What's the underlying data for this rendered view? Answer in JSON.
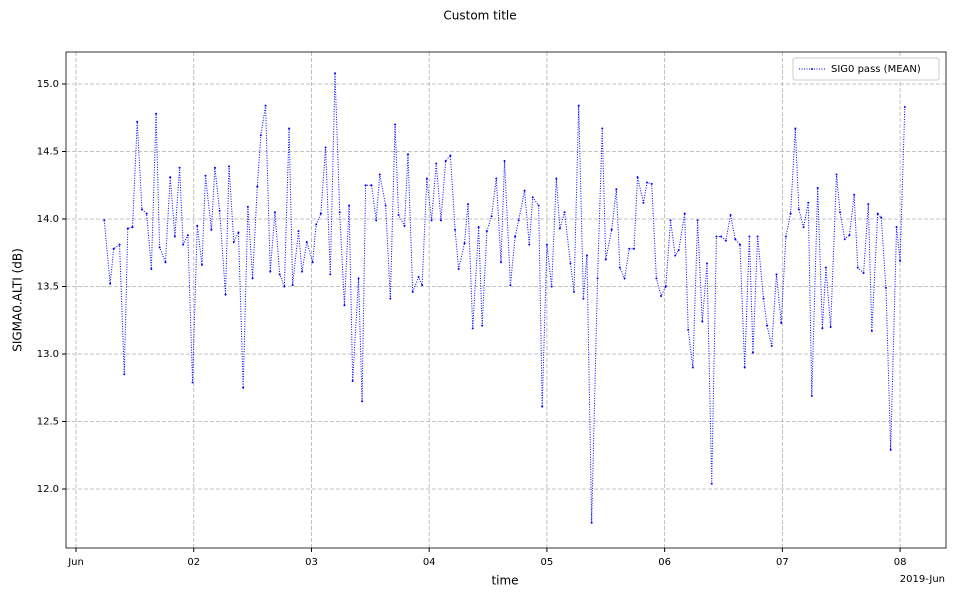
{
  "chart_data": {
    "type": "line",
    "title": "Custom title",
    "xlabel": "time",
    "ylabel": "SIGMA0.ALTI (dB)",
    "x_offset_label": "2019-Jun",
    "xlim": [
      -0.085,
      7.39
    ],
    "ylim": [
      11.563,
      15.237
    ],
    "xticks": [
      {
        "value": 0,
        "label": "Jun"
      },
      {
        "value": 1,
        "label": "02"
      },
      {
        "value": 2,
        "label": "03"
      },
      {
        "value": 3,
        "label": "04"
      },
      {
        "value": 4,
        "label": "05"
      },
      {
        "value": 5,
        "label": "06"
      },
      {
        "value": 6,
        "label": "07"
      },
      {
        "value": 7,
        "label": "08"
      }
    ],
    "yticks": [
      {
        "value": 12,
        "label": "12.0"
      },
      12.5,
      {
        "value": 13,
        "label": "13.0"
      },
      13.5,
      {
        "value": 14,
        "label": "14.0"
      },
      14.5,
      {
        "value": 15,
        "label": "15.0"
      }
    ],
    "grid": true,
    "legend": "upper right",
    "x": [
      0.24,
      0.29,
      0.32,
      0.37,
      0.41,
      0.44,
      0.48,
      0.52,
      0.56,
      0.6,
      0.64,
      0.68,
      0.71,
      0.76,
      0.8,
      0.84,
      0.88,
      0.91,
      0.95,
      0.99,
      1.03,
      1.07,
      1.1,
      1.15,
      1.18,
      1.22,
      1.27,
      1.3,
      1.34,
      1.38,
      1.42,
      1.46,
      1.5,
      1.54,
      1.57,
      1.61,
      1.65,
      1.69,
      1.73,
      1.77,
      1.81,
      1.84,
      1.89,
      1.92,
      1.96,
      2.01,
      2.04,
      2.08,
      2.12,
      2.16,
      2.2,
      2.24,
      2.28,
      2.32,
      2.35,
      2.4,
      2.43,
      2.46,
      2.51,
      2.55,
      2.58,
      2.63,
      2.67,
      2.71,
      2.74,
      2.79,
      2.82,
      2.86,
      2.91,
      2.94,
      2.98,
      3.02,
      3.06,
      3.1,
      3.14,
      3.18,
      3.22,
      3.25,
      3.3,
      3.33,
      3.37,
      3.42,
      3.45,
      3.49,
      3.53,
      3.57,
      3.61,
      3.64,
      3.69,
      3.73,
      3.76,
      3.81,
      3.85,
      3.88,
      3.93,
      3.96,
      4.0,
      4.04,
      4.08,
      4.11,
      4.15,
      4.2,
      4.23,
      4.27,
      4.31,
      4.34,
      4.38,
      4.43,
      4.47,
      4.5,
      4.55,
      4.59,
      4.62,
      4.66,
      4.7,
      4.74,
      4.77,
      4.82,
      4.85,
      4.89,
      4.93,
      4.97,
      5.01,
      5.05,
      5.09,
      5.12,
      5.17,
      5.2,
      5.24,
      5.28,
      5.32,
      5.36,
      5.4,
      5.44,
      5.48,
      5.52,
      5.56,
      5.6,
      5.64,
      5.68,
      5.72,
      5.75,
      5.79,
      5.84,
      5.87,
      5.91,
      5.95,
      5.99,
      6.03,
      6.07,
      6.11,
      6.14,
      6.18,
      6.22,
      6.25,
      6.3,
      6.34,
      6.37,
      6.41,
      6.46,
      6.49,
      6.53,
      6.57,
      6.61,
      6.64,
      6.69,
      6.73,
      6.76,
      6.81,
      6.84,
      6.88,
      6.92,
      6.97,
      7.0,
      7.04
    ],
    "series": [
      {
        "name": "SIG0 pass (MEAN)",
        "color": "#0000ff",
        "values": [
          13.99,
          13.52,
          13.78,
          13.81,
          12.85,
          13.93,
          13.94,
          14.72,
          14.07,
          14.04,
          13.63,
          14.78,
          13.79,
          13.68,
          14.31,
          13.87,
          14.38,
          13.81,
          13.88,
          12.79,
          13.95,
          13.66,
          14.32,
          13.92,
          14.38,
          14.06,
          13.44,
          14.39,
          13.83,
          13.9,
          12.75,
          14.09,
          13.56,
          14.24,
          14.62,
          14.84,
          13.61,
          14.05,
          13.59,
          13.5,
          14.67,
          13.51,
          13.91,
          13.61,
          13.83,
          13.68,
          13.96,
          14.04,
          14.53,
          13.59,
          15.08,
          14.05,
          13.36,
          14.1,
          12.8,
          13.56,
          12.65,
          14.25,
          14.25,
          13.99,
          14.33,
          14.1,
          13.41,
          14.7,
          14.03,
          13.95,
          14.48,
          13.46,
          13.57,
          13.51,
          14.3,
          13.99,
          14.41,
          13.99,
          14.43,
          14.47,
          13.92,
          13.63,
          13.82,
          14.11,
          13.19,
          13.94,
          13.21,
          13.91,
          14.02,
          14.3,
          13.68,
          14.43,
          13.51,
          13.87,
          13.99,
          14.21,
          13.81,
          14.16,
          14.1,
          12.61,
          13.81,
          13.5,
          14.3,
          13.93,
          14.05,
          13.67,
          13.46,
          14.84,
          13.41,
          13.73,
          11.75,
          13.56,
          14.67,
          13.7,
          13.92,
          14.22,
          13.64,
          13.56,
          13.78,
          13.78,
          14.31,
          14.12,
          14.27,
          14.26,
          13.56,
          13.43,
          13.5,
          13.99,
          13.73,
          13.77,
          14.04,
          13.18,
          12.9,
          13.99,
          13.24,
          13.67,
          12.04,
          13.87,
          13.87,
          13.84,
          14.03,
          13.85,
          13.81,
          12.9,
          13.87,
          13.01,
          13.87,
          13.41,
          13.21,
          13.06,
          13.59,
          13.23,
          13.87,
          14.04,
          14.67,
          14.07,
          13.94,
          14.12,
          12.69,
          14.23,
          13.19,
          13.64,
          13.2,
          14.33,
          14.05,
          13.85,
          13.88,
          14.18,
          13.64,
          13.6,
          14.11,
          13.17,
          14.04,
          14.01,
          13.49,
          12.29,
          13.94,
          13.69,
          14.83
        ]
      }
    ]
  }
}
